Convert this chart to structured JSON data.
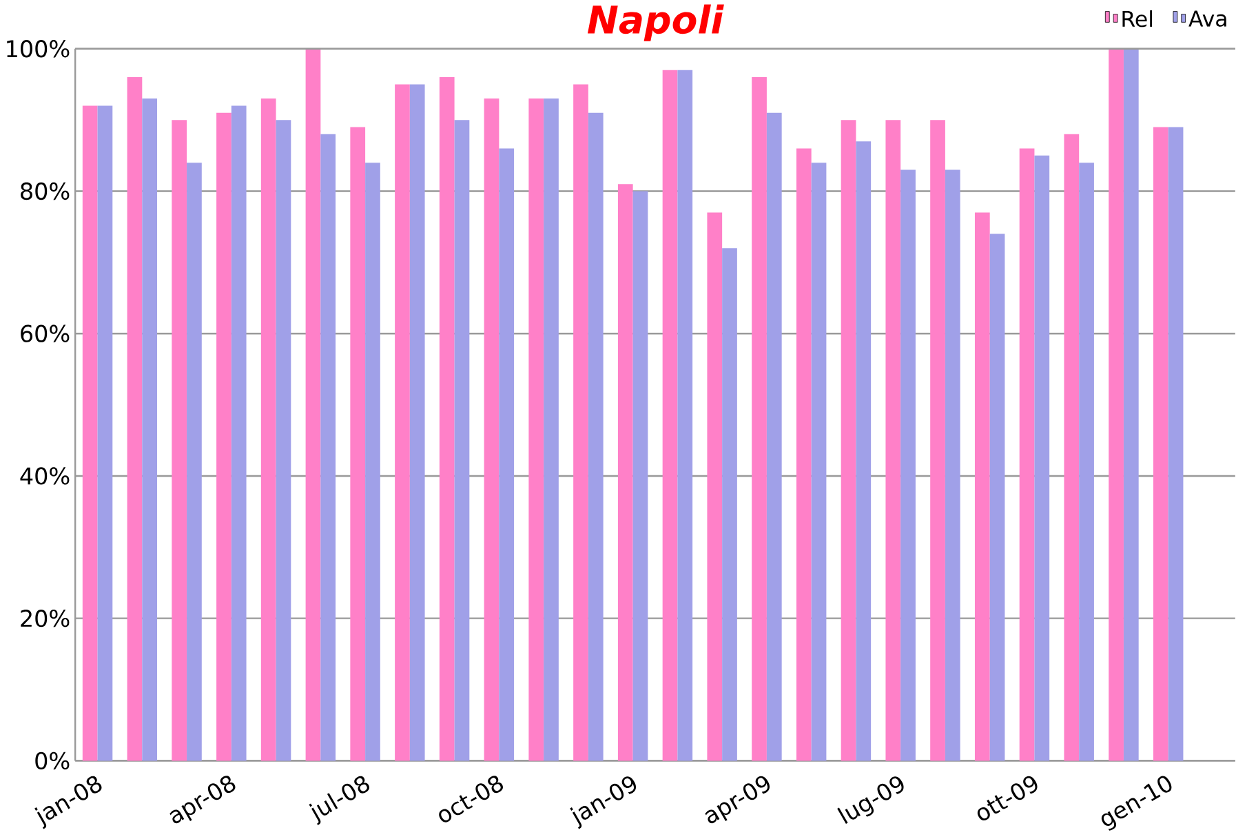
{
  "chart_data": {
    "type": "bar",
    "title": "Napoli",
    "categories": [
      "jan-08",
      null,
      null,
      "apr-08",
      null,
      null,
      "jul-08",
      null,
      null,
      "oct-08",
      null,
      null,
      "jan-09",
      null,
      null,
      "apr-09",
      null,
      null,
      "lug-09",
      null,
      null,
      "ott-09",
      null,
      null,
      "gen-10"
    ],
    "series": [
      {
        "name": "Rel",
        "color": "#ff80c8",
        "values": [
          92,
          96,
          90,
          91,
          93,
          100,
          89,
          95,
          96,
          93,
          93,
          95,
          81,
          97,
          77,
          96,
          86,
          90,
          90,
          90,
          77,
          86,
          88,
          100,
          89
        ]
      },
      {
        "name": "Ava",
        "color": "#a0a0e8",
        "values": [
          92,
          93,
          84,
          92,
          90,
          88,
          84,
          95,
          90,
          86,
          93,
          91,
          80,
          97,
          72,
          91,
          84,
          87,
          83,
          83,
          74,
          85,
          84,
          100,
          89
        ]
      }
    ],
    "ylim": [
      0,
      100
    ],
    "yticks": [
      {
        "value": 0,
        "label": "0%"
      },
      {
        "value": 20,
        "label": "20%"
      },
      {
        "value": 40,
        "label": "40%"
      },
      {
        "value": 60,
        "label": "60%"
      },
      {
        "value": 80,
        "label": "80%"
      },
      {
        "value": 100,
        "label": "100%"
      }
    ],
    "grid": "y",
    "legend": "top right"
  }
}
